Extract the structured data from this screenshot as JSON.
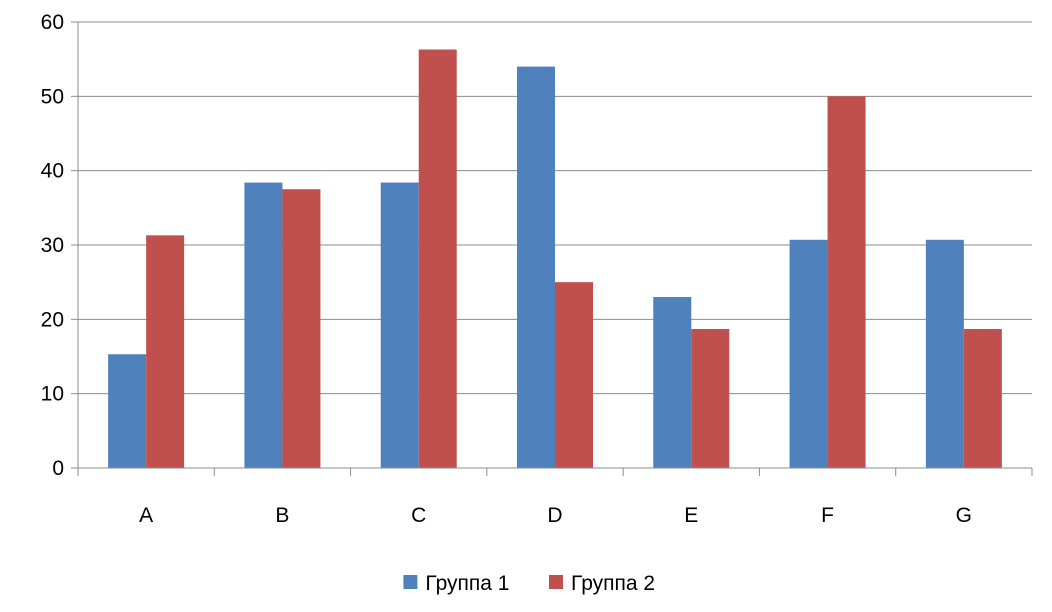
{
  "chart_data": {
    "type": "bar",
    "title": "",
    "xlabel": "",
    "ylabel": "",
    "categories": [
      "A",
      "B",
      "C",
      "D",
      "E",
      "F",
      "G"
    ],
    "series": [
      {
        "name": "Группа 1",
        "color": "#4F81BD",
        "values": [
          15.3,
          38.4,
          38.4,
          54,
          23,
          30.7,
          30.7
        ]
      },
      {
        "name": "Группа 2",
        "color": "#C0504D",
        "values": [
          31.3,
          37.5,
          56.3,
          25,
          18.7,
          50,
          18.7
        ]
      }
    ],
    "ylim": [
      0,
      60
    ],
    "yticks": [
      "0",
      "10",
      "20",
      "30",
      "40",
      "50",
      "60"
    ],
    "grid": true,
    "legend": "bottom"
  }
}
